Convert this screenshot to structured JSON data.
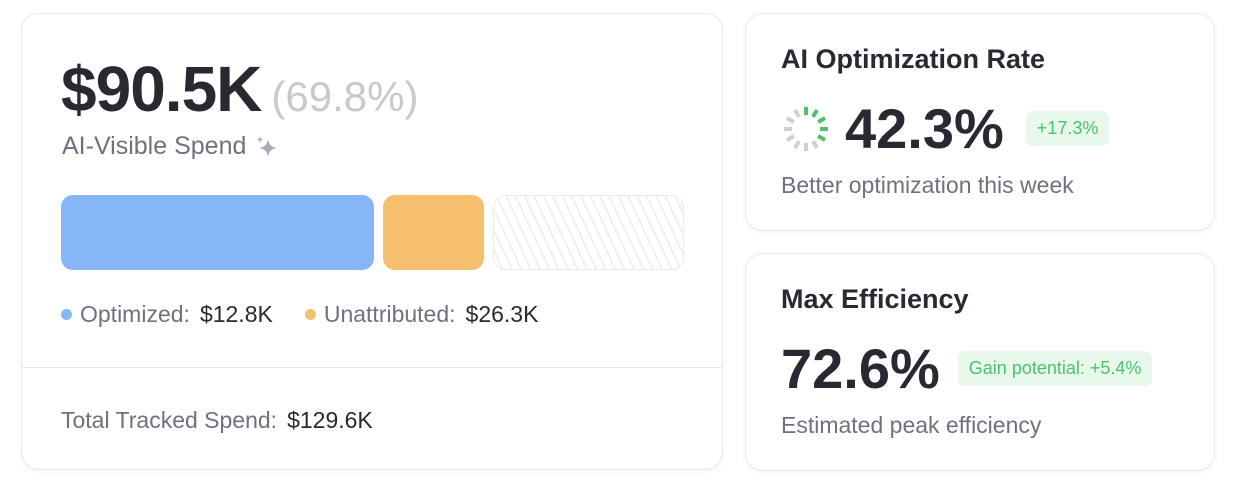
{
  "spend": {
    "amount": "$90.5K",
    "percent": "(69.8%)",
    "label": "AI-Visible Spend",
    "icon": "sparkle-icon",
    "segments": [
      {
        "name": "Optimized",
        "value": 12.8,
        "color": "#86b6f6"
      },
      {
        "name": "Unattributed",
        "value": 26.3,
        "color": "#f6bf6e"
      },
      {
        "name": "Remaining",
        "value": null,
        "color": "hatched"
      }
    ],
    "legend": [
      {
        "label": "Optimized:",
        "value": "$12.8K",
        "color": "#86b6f6"
      },
      {
        "label": "Unattributed:",
        "value": "$26.3K",
        "color": "#f6bf6e"
      }
    ],
    "total_label": "Total Tracked Spend:",
    "total_value": "$129.6K"
  },
  "rate": {
    "title": "AI Optimization Rate",
    "value": "42.3%",
    "progress": 42.3,
    "badge": "+17.3%",
    "desc": "Better optimization this week"
  },
  "efficiency": {
    "title": "Max Efficiency",
    "value": "72.6%",
    "badge": "Gain potential: +5.4%",
    "desc": "Estimated peak efficiency"
  },
  "colors": {
    "accent_green": "#4cc36a",
    "badge_bg": "#e8f8ec",
    "blue": "#86b6f6",
    "orange": "#f6bf6e"
  }
}
